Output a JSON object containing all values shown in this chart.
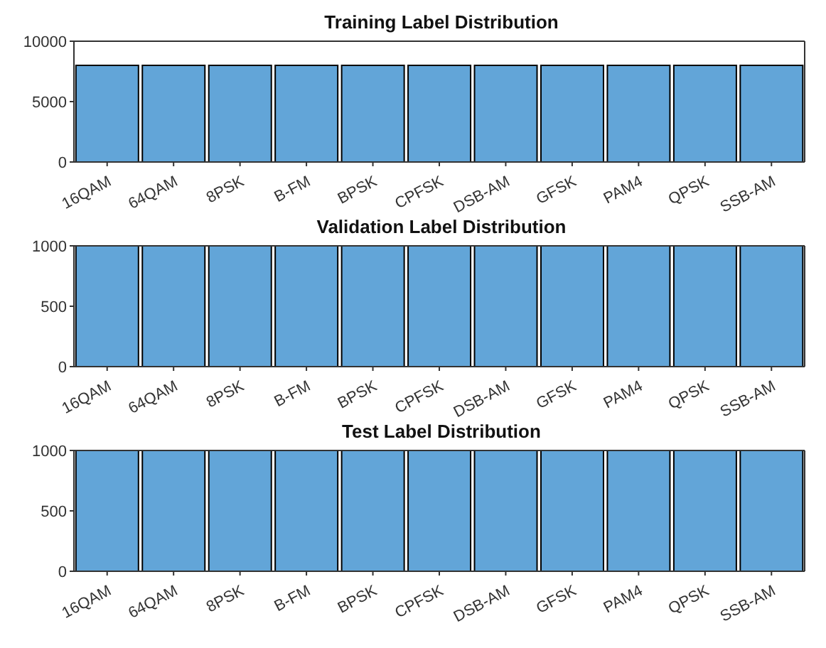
{
  "chart_data": [
    {
      "type": "bar",
      "title": "Training Label Distribution",
      "categories": [
        "16QAM",
        "64QAM",
        "8PSK",
        "B-FM",
        "BPSK",
        "CPFSK",
        "DSB-AM",
        "GFSK",
        "PAM4",
        "QPSK",
        "SSB-AM"
      ],
      "values": [
        8000,
        8000,
        8000,
        8000,
        8000,
        8000,
        8000,
        8000,
        8000,
        8000,
        8000
      ],
      "color": "#62a5d8",
      "ylim": [
        0,
        10000
      ],
      "yticks": [
        0,
        5000,
        10000
      ],
      "grid": false,
      "legend": false
    },
    {
      "type": "bar",
      "title": "Validation Label Distribution",
      "categories": [
        "16QAM",
        "64QAM",
        "8PSK",
        "B-FM",
        "BPSK",
        "CPFSK",
        "DSB-AM",
        "GFSK",
        "PAM4",
        "QPSK",
        "SSB-AM"
      ],
      "values": [
        1000,
        1000,
        1000,
        1000,
        1000,
        1000,
        1000,
        1000,
        1000,
        1000,
        1000
      ],
      "color": "#62a5d8",
      "ylim": [
        0,
        1000
      ],
      "yticks": [
        0,
        500,
        1000
      ],
      "grid": false,
      "legend": false
    },
    {
      "type": "bar",
      "title": "Test Label Distribution",
      "categories": [
        "16QAM",
        "64QAM",
        "8PSK",
        "B-FM",
        "BPSK",
        "CPFSK",
        "DSB-AM",
        "GFSK",
        "PAM4",
        "QPSK",
        "SSB-AM"
      ],
      "values": [
        1000,
        1000,
        1000,
        1000,
        1000,
        1000,
        1000,
        1000,
        1000,
        1000,
        1000
      ],
      "color": "#62a5d8",
      "ylim": [
        0,
        1000
      ],
      "yticks": [
        0,
        500,
        1000
      ],
      "grid": false,
      "legend": false
    }
  ]
}
